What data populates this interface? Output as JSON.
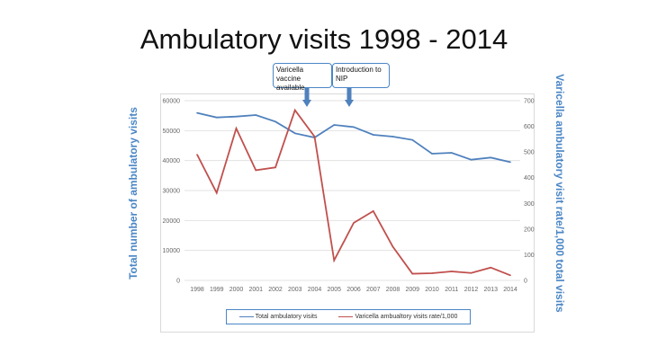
{
  "slide": {
    "title": "Ambulatory visits 1998 - 2014"
  },
  "annotations": [
    {
      "label": "Varicella vaccine available",
      "year": "2004"
    },
    {
      "label": "Introduction to NIP",
      "year": "2006"
    }
  ],
  "colors": {
    "total": "#4f81bd",
    "rate": "#c0504d",
    "axis_label": "#4a86c5"
  },
  "chart_data": {
    "type": "line",
    "title": "Ambulatory visits 1998 - 2014",
    "xlabel": "",
    "ylabel": "Total number of ambulatory visits",
    "y2label": "Varicella ambulatory visit rate/1,000 total visits",
    "ylim": [
      0,
      60000
    ],
    "y2lim": [
      0,
      700
    ],
    "yticks": [
      "0",
      "10000",
      "20000",
      "30000",
      "40000",
      "50000",
      "60000"
    ],
    "y2ticks": [
      "0",
      "100",
      "200",
      "300",
      "400",
      "500",
      "600",
      "700"
    ],
    "categories": [
      "1998",
      "1999",
      "2000",
      "2001",
      "2002",
      "2003",
      "2004",
      "2005",
      "2006",
      "2007",
      "2008",
      "2009",
      "2010",
      "2011",
      "2012",
      "2013",
      "2014"
    ],
    "series": [
      {
        "name": "Total ambulatory visits",
        "axis": "left",
        "values": [
          55900,
          54400,
          54700,
          55200,
          53000,
          49100,
          47700,
          51900,
          51200,
          48600,
          48000,
          46900,
          42300,
          42600,
          40300,
          41000,
          39500
        ]
      },
      {
        "name": "Varicella ambualtory visits rate/1,000",
        "axis": "right",
        "values": [
          490,
          341,
          592,
          429,
          440,
          663,
          560,
          78,
          224,
          270,
          131,
          26,
          28,
          35,
          29,
          50,
          20
        ]
      }
    ],
    "grid": true,
    "legend": "bottom"
  }
}
